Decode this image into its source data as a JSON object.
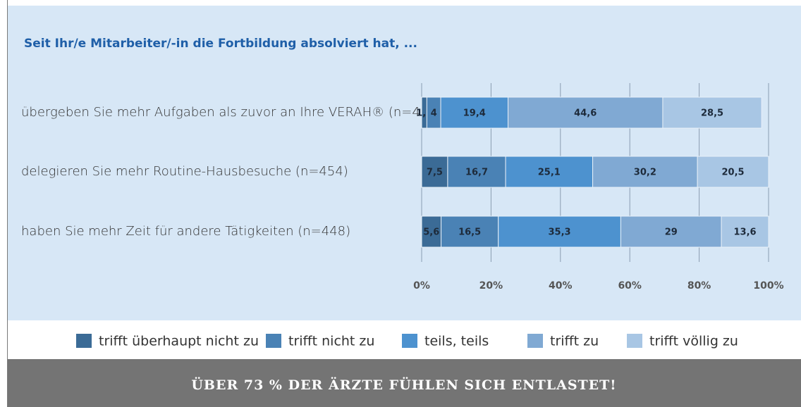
{
  "chart_data": {
    "type": "bar",
    "orientation": "horizontal",
    "stacked": true,
    "title": "Seit Ihr/e Mitarbeiter/-in die Fortbildung absolviert hat, ...",
    "annotation": "ÜBER 73 % DER ÄRZTE FÜHLEN SICH ENTLASTET!",
    "categories": [
      "übergeben Sie mehr Aufgaben als zuvor an Ihre VERAH® (n=453)",
      "delegieren Sie mehr Routine-Hausbesuche (n=454)",
      "haben Sie mehr Zeit für andere Tätigkeiten (n=448)"
    ],
    "series": [
      {
        "name": "trifft überhaupt nicht zu",
        "color": "#3b6b96",
        "values": [
          1.5,
          7.5,
          5.6
        ],
        "value_labels": [
          "1,5",
          "7,5",
          "5,6"
        ]
      },
      {
        "name": "trifft nicht zu",
        "color": "#4a82b5",
        "values": [
          4,
          16.7,
          16.5
        ],
        "value_labels": [
          "4",
          "16,7",
          "16,5"
        ]
      },
      {
        "name": "teils, teils",
        "color": "#4d92cf",
        "values": [
          19.4,
          25.1,
          35.3
        ],
        "value_labels": [
          "19,4",
          "25,1",
          "35,3"
        ]
      },
      {
        "name": "trifft zu",
        "color": "#80a9d3",
        "values": [
          44.6,
          30.2,
          29
        ],
        "value_labels": [
          "44,6",
          "30,2",
          "29"
        ]
      },
      {
        "name": "trifft völlig zu",
        "color": "#a8c6e4",
        "values": [
          28.5,
          20.5,
          13.6
        ],
        "value_labels": [
          "28,5",
          "20,5",
          "13,6"
        ]
      }
    ],
    "xlim": [
      0,
      100
    ],
    "xticks": [
      {
        "value": 0,
        "label": "0%"
      },
      {
        "value": 20,
        "label": "20%"
      },
      {
        "value": 40,
        "label": "40%"
      },
      {
        "value": 60,
        "label": "60%"
      },
      {
        "value": 80,
        "label": "80%"
      },
      {
        "value": 100,
        "label": "100%"
      }
    ],
    "grid": true,
    "legend": "bottom"
  }
}
